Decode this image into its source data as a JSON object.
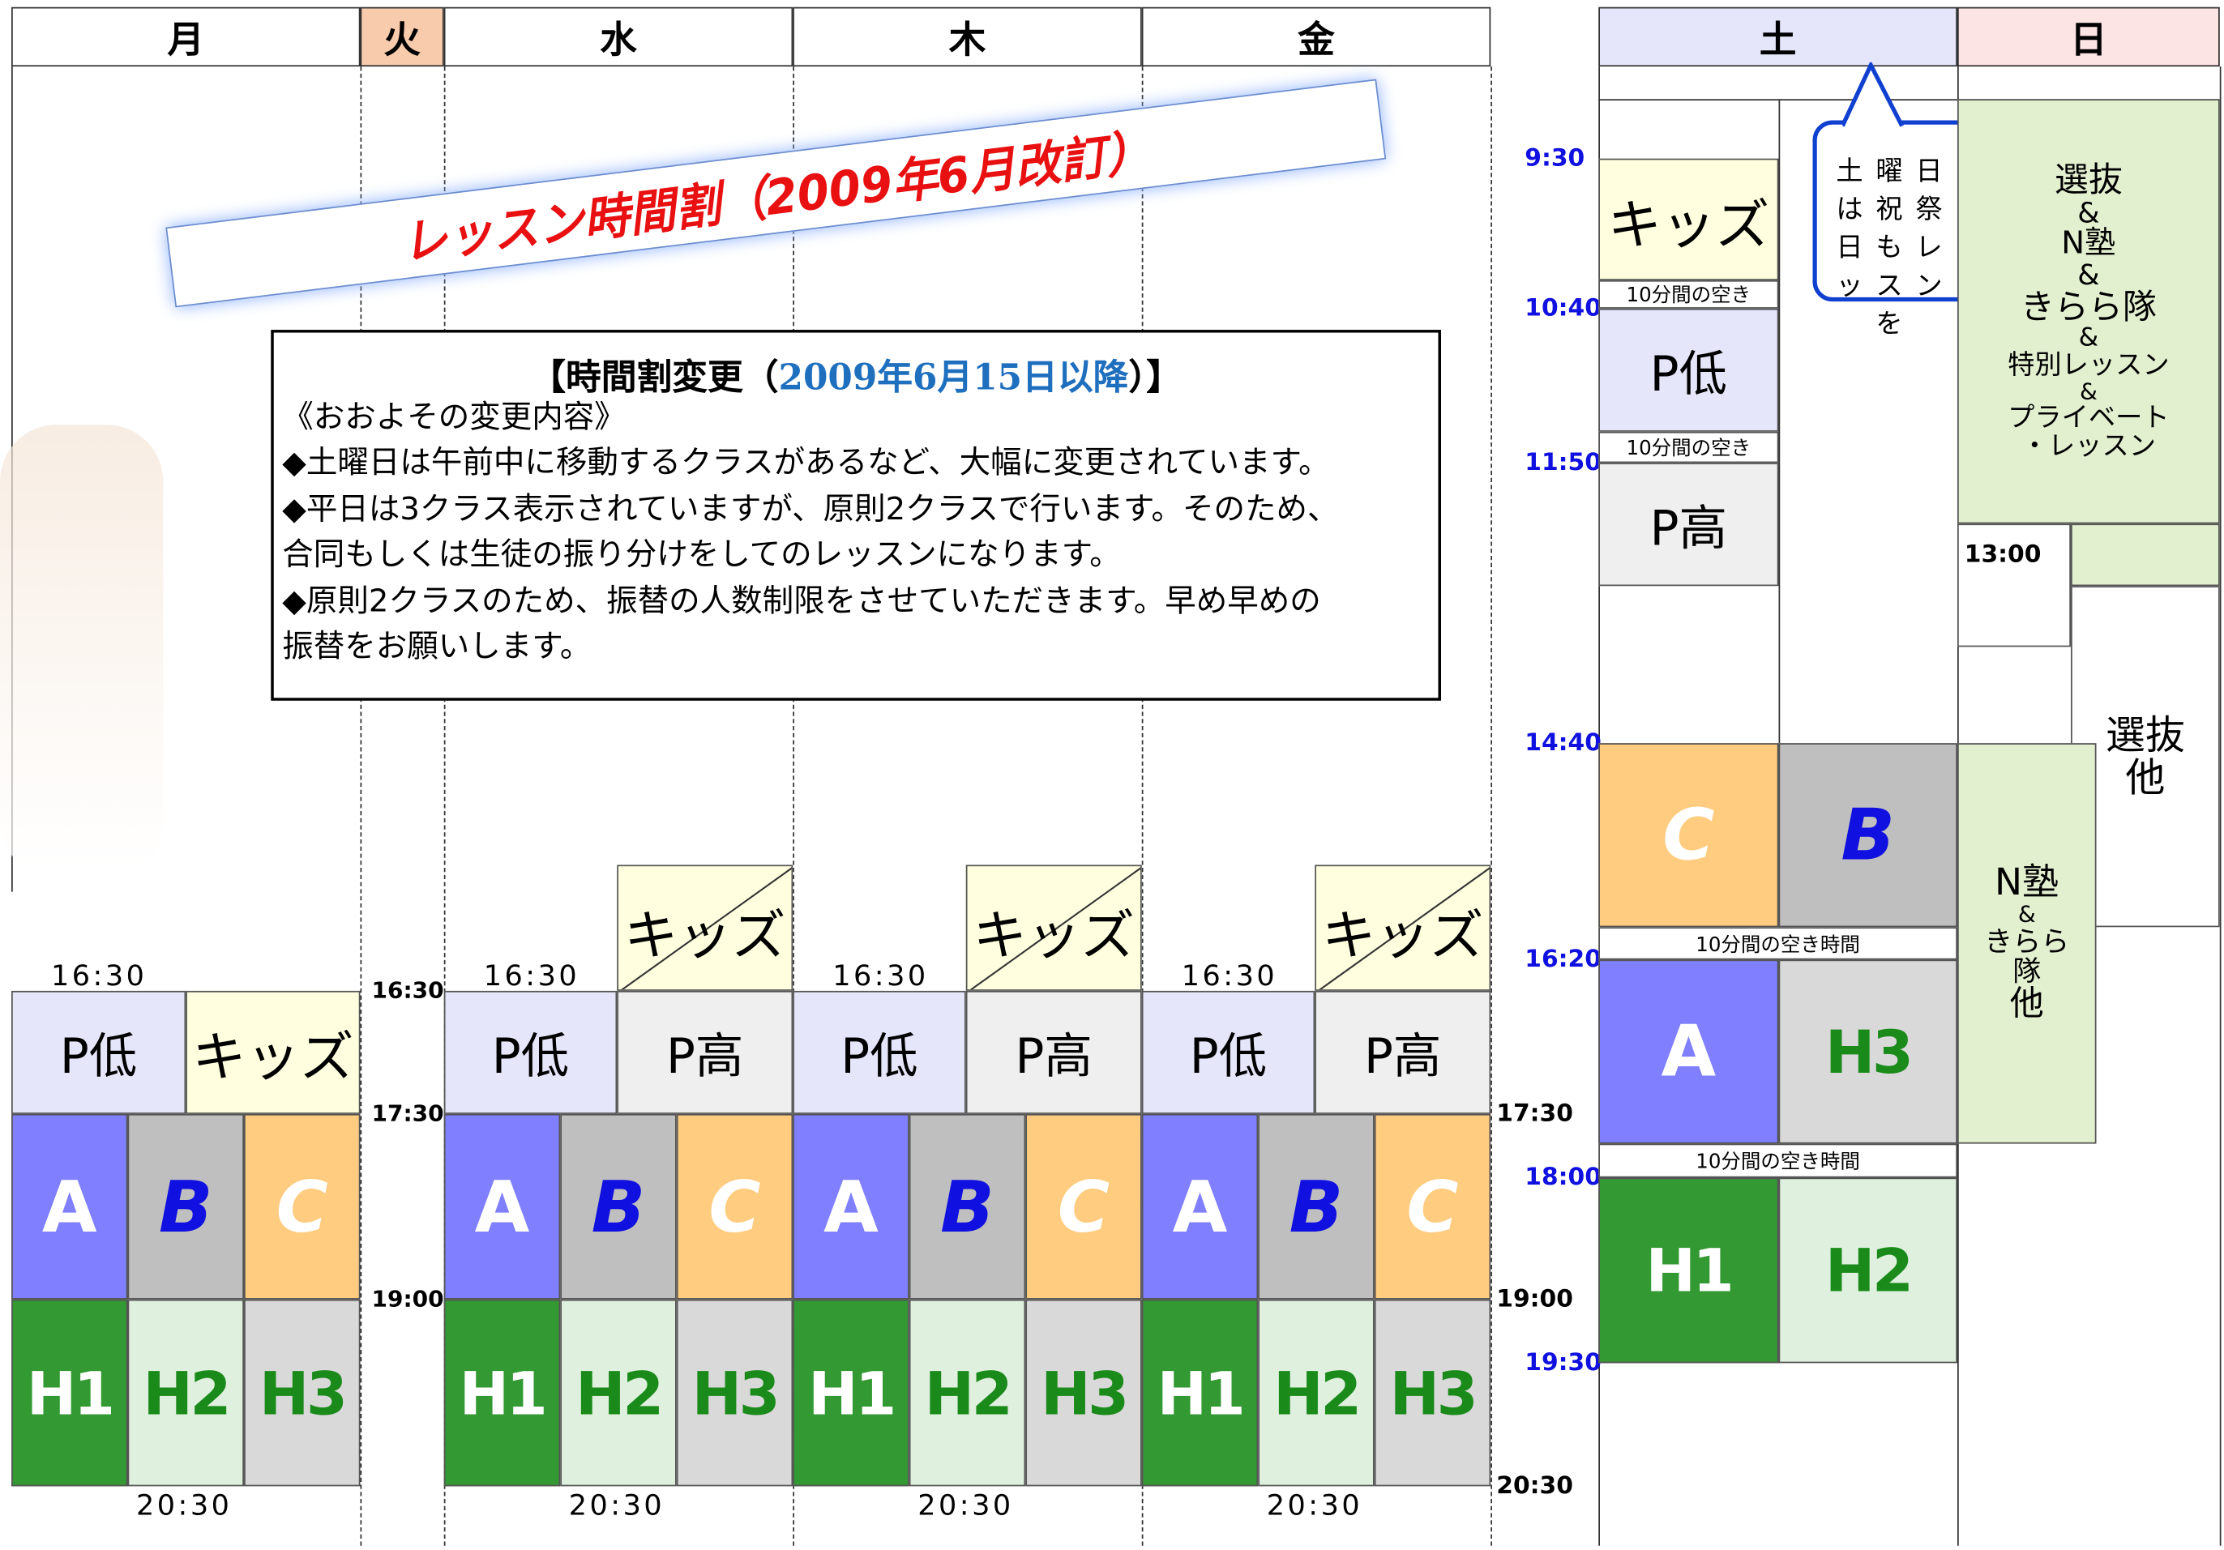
{
  "days": [
    "月",
    "火",
    "水",
    "木",
    "金",
    "土",
    "日"
  ],
  "banner": "レッスン時間割（2009年6月改訂）",
  "notice": {
    "title_pre": "【時間割変更（",
    "title_date": "2009年6月15日以降",
    "title_post": "）】",
    "lines": [
      "《おおよその変更内容》",
      "◆土曜日は午前中に移動するクラスがあるなど、大幅に変更されています。",
      "◆平日は3クラス表示されていますが、原則2クラスで行います。そのため、",
      "合同もしくは生徒の振り分けをしてのレッスンになります。",
      "◆原則2クラスのため、振替の人数制限をさせていただきます。早め早めの",
      "振替をお願いします。"
    ]
  },
  "callout": "土曜日は祝祭日もレッスンを",
  "classes": {
    "p_low": "P低",
    "p_high": "P高",
    "kids": "キッズ",
    "a": "A",
    "b": "B",
    "c": "C",
    "h1": "H1",
    "h2": "H2",
    "h3": "H3"
  },
  "weekday_times": {
    "start": "16:30",
    "end": "20:30"
  },
  "tue_times": [
    "16:30",
    "17:30",
    "19:00"
  ],
  "gap_times": [
    "17:30",
    "19:00",
    "20:30"
  ],
  "sat_times": [
    "9:30",
    "10:40",
    "11:50",
    "14:40",
    "16:20",
    "18:00",
    "19:30"
  ],
  "sat_breaks": {
    "short": "10分間の空き",
    "long": "10分間の空き時間"
  },
  "sun_time": "13:00",
  "sun_main": [
    "選抜",
    "&",
    "N塾",
    "&",
    "きらら隊",
    "&",
    "特別レッスン",
    "&",
    "プライベート",
    "・レッスン"
  ],
  "sun_sel": [
    "選抜",
    "他"
  ],
  "sun_n": [
    "N塾",
    "&",
    "きらら",
    "隊",
    "他"
  ]
}
